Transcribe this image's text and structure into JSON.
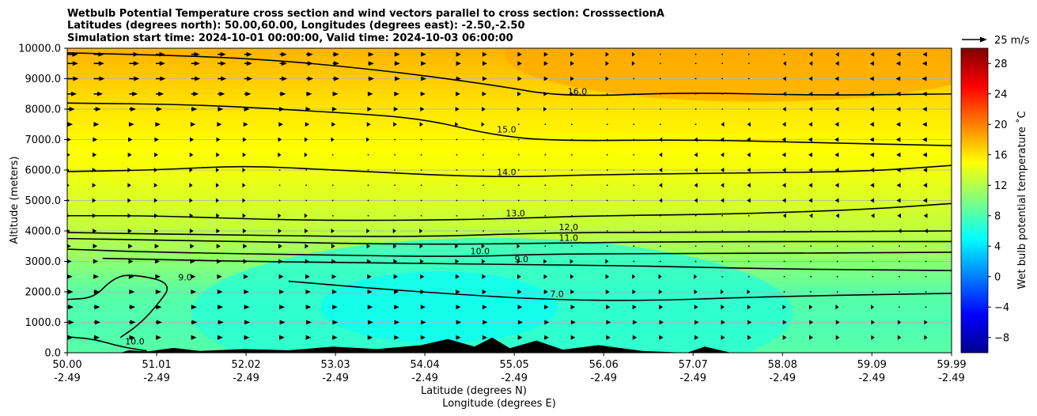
{
  "chart_data": {
    "type": "heatmap",
    "title_lines": [
      "Wetbulb Potential Temperature cross section and wind vectors parallel to cross section: CrosssectionA",
      "Latitudes (degrees north): 50.00,60.00, Longitudes (degrees east): -2.50,-2.50",
      "Simulation start time: 2024-10-01 00:00:00, Valid time: 2024-10-03 06:00:00"
    ],
    "xlabel": "Latitude (degrees N)",
    "xlabel2": "Longitude (degrees E)",
    "ylabel": "Altitude (meters)",
    "xlim": [
      50.0,
      59.99
    ],
    "ylim": [
      0,
      10000
    ],
    "x_ticks": [
      {
        "lat": "50.00",
        "lon": "-2.49",
        "value": 50.0
      },
      {
        "lat": "51.01",
        "lon": "-2.49",
        "value": 51.01
      },
      {
        "lat": "52.02",
        "lon": "-2.49",
        "value": 52.02
      },
      {
        "lat": "53.03",
        "lon": "-2.49",
        "value": 53.03
      },
      {
        "lat": "54.04",
        "lon": "-2.49",
        "value": 54.04
      },
      {
        "lat": "55.05",
        "lon": "-2.49",
        "value": 55.05
      },
      {
        "lat": "56.06",
        "lon": "-2.49",
        "value": 56.06
      },
      {
        "lat": "57.07",
        "lon": "-2.49",
        "value": 57.07
      },
      {
        "lat": "58.08",
        "lon": "-2.49",
        "value": 58.08
      },
      {
        "lat": "59.09",
        "lon": "-2.49",
        "value": 59.09
      },
      {
        "lat": "59.99",
        "lon": "-2.49",
        "value": 59.99
      }
    ],
    "y_ticks": [
      "0.0",
      "1000.0",
      "2000.0",
      "3000.0",
      "4000.0",
      "5000.0",
      "6000.0",
      "7000.0",
      "8000.0",
      "9000.0",
      "10000.0"
    ],
    "grid": true,
    "colorbar": {
      "label": "Wet bulb potential temperature $^\\circ$C",
      "label_text": "Wet bulb potential temperature ˚C",
      "range": [
        -10,
        30
      ],
      "ticks": [
        "28",
        "24",
        "20",
        "16",
        "12",
        "8",
        "4",
        "0",
        "−4",
        "−8"
      ],
      "tick_values": [
        28,
        24,
        20,
        16,
        12,
        8,
        4,
        0,
        -4,
        -8
      ],
      "colormap": "jet"
    },
    "quiver_key": {
      "label": "25 m/s",
      "speed": 25
    },
    "background_levels": [
      {
        "alt": 0,
        "value": 8.5
      },
      {
        "alt": 1000,
        "value": 8.0
      },
      {
        "alt": 2000,
        "value": 8.5
      },
      {
        "alt": 3000,
        "value": 10.5
      },
      {
        "alt": 4000,
        "value": 12.5
      },
      {
        "alt": 5000,
        "value": 13.5
      },
      {
        "alt": 6000,
        "value": 14.5
      },
      {
        "alt": 7000,
        "value": 15.2
      },
      {
        "alt": 8000,
        "value": 16.0
      },
      {
        "alt": 9000,
        "value": 17.0
      },
      {
        "alt": 10000,
        "value": 18.0
      }
    ],
    "contours": [
      {
        "level": 16.0,
        "label": "16.0",
        "points": [
          [
            50.0,
            9850
          ],
          [
            52.0,
            9700
          ],
          [
            53.5,
            9300
          ],
          [
            54.8,
            8800
          ],
          [
            55.6,
            8400
          ],
          [
            57.0,
            8550
          ],
          [
            58.5,
            8450
          ],
          [
            59.99,
            8500
          ]
        ]
      },
      {
        "level": 15.0,
        "label": "15.0",
        "points": [
          [
            50.0,
            8200
          ],
          [
            51.5,
            8150
          ],
          [
            53.0,
            7900
          ],
          [
            54.0,
            7700
          ],
          [
            54.8,
            7150
          ],
          [
            55.5,
            6950
          ],
          [
            57.0,
            7000
          ],
          [
            58.5,
            6900
          ],
          [
            59.99,
            6800
          ]
        ]
      },
      {
        "level": 14.0,
        "label": "14.0",
        "points": [
          [
            50.0,
            5950
          ],
          [
            51.0,
            6000
          ],
          [
            52.0,
            6150
          ],
          [
            53.0,
            6000
          ],
          [
            54.8,
            5750
          ],
          [
            56.0,
            5850
          ],
          [
            57.5,
            5900
          ],
          [
            59.0,
            5950
          ],
          [
            59.99,
            6150
          ]
        ]
      },
      {
        "level": 13.0,
        "label": "13.0",
        "points": [
          [
            50.0,
            4500
          ],
          [
            51.0,
            4500
          ],
          [
            52.5,
            4350
          ],
          [
            54.0,
            4350
          ],
          [
            54.9,
            4400
          ],
          [
            56.0,
            4500
          ],
          [
            57.5,
            4550
          ],
          [
            59.0,
            4700
          ],
          [
            59.99,
            4900
          ]
        ]
      },
      {
        "level": 12.0,
        "label": "12.0",
        "points": [
          [
            50.0,
            3950
          ],
          [
            52.0,
            3850
          ],
          [
            54.0,
            3800
          ],
          [
            55.5,
            3950
          ],
          [
            57.0,
            3950
          ],
          [
            59.99,
            4000
          ]
        ]
      },
      {
        "level": 11.0,
        "label": "11.0",
        "points": [
          [
            50.0,
            3750
          ],
          [
            52.0,
            3650
          ],
          [
            54.0,
            3550
          ],
          [
            55.5,
            3600
          ],
          [
            57.0,
            3650
          ],
          [
            59.99,
            3650
          ]
        ]
      },
      {
        "level": 10.0,
        "label": "10.0",
        "points": [
          [
            50.0,
            3400
          ],
          [
            51.0,
            3300
          ],
          [
            53.0,
            3200
          ],
          [
            54.5,
            3150
          ],
          [
            55.5,
            3250
          ],
          [
            57.0,
            3250
          ],
          [
            59.99,
            3300
          ]
        ]
      },
      {
        "level": 9.0,
        "label": "9.0",
        "points": [
          [
            50.4,
            3100
          ],
          [
            52.0,
            3000
          ],
          [
            53.5,
            2950
          ],
          [
            55.0,
            2900
          ],
          [
            56.5,
            2850
          ],
          [
            58.0,
            2750
          ],
          [
            59.99,
            2700
          ]
        ]
      },
      {
        "level": 7.0,
        "label": "7.0",
        "points": [
          [
            52.5,
            2350
          ],
          [
            53.5,
            2100
          ],
          [
            54.5,
            1900
          ],
          [
            55.4,
            1750
          ],
          [
            56.5,
            1700
          ],
          [
            58.0,
            1850
          ],
          [
            59.99,
            1950
          ]
        ]
      },
      {
        "level": 10.0,
        "label": "10.0",
        "points": [
          [
            50.0,
            520
          ],
          [
            50.3,
            450
          ],
          [
            50.6,
            200
          ],
          [
            50.9,
            60
          ]
        ]
      },
      {
        "level": 9.0,
        "label": "9.0",
        "points": [
          [
            50.0,
            1750
          ],
          [
            50.3,
            1800
          ],
          [
            50.5,
            2400
          ],
          [
            50.7,
            2600
          ],
          [
            51.2,
            2300
          ],
          [
            51.0,
            1500
          ],
          [
            50.8,
            900
          ],
          [
            50.6,
            500
          ]
        ]
      }
    ],
    "wind_rows_alt": [
      9800,
      9500,
      9000,
      8500,
      8000,
      7500,
      7000,
      6500,
      6000,
      5500,
      5000,
      4500,
      4000,
      3500,
      3000,
      2500,
      2000,
      1500,
      1000,
      500
    ],
    "wind_columns_lat": [
      50.0,
      50.3,
      50.7,
      51.0,
      51.4,
      51.7,
      52.0,
      52.4,
      52.7,
      53.0,
      53.4,
      53.7,
      54.0,
      54.4,
      54.7,
      55.1,
      55.4,
      55.7,
      56.1,
      56.4,
      56.7,
      57.1,
      57.4,
      57.7,
      58.1,
      58.4,
      58.7,
      59.1,
      59.4,
      59.7
    ],
    "wind_u_profile": [
      {
        "alt": 9800,
        "u_south": 14,
        "u_north": -5
      },
      {
        "alt": 9000,
        "u_south": 15,
        "u_north": -6
      },
      {
        "alt": 8000,
        "u_south": 10,
        "u_north": -5
      },
      {
        "alt": 7000,
        "u_south": 5,
        "u_north": -5
      },
      {
        "alt": 6000,
        "u_south": 3,
        "u_north": -4
      },
      {
        "alt": 5000,
        "u_south": 3,
        "u_north": -4
      },
      {
        "alt": 4000,
        "u_south": 4,
        "u_north": -2
      },
      {
        "alt": 3000,
        "u_south": 6,
        "u_north": -1
      },
      {
        "alt": 2000,
        "u_south": 8,
        "u_north": 0
      },
      {
        "alt": 1000,
        "u_south": 9,
        "u_north": 2
      },
      {
        "alt": 500,
        "u_south": 8,
        "u_north": 2
      }
    ],
    "terrain": [
      [
        50.6,
        0
      ],
      [
        50.7,
        80
      ],
      [
        50.9,
        40
      ],
      [
        51.2,
        160
      ],
      [
        51.5,
        60
      ],
      [
        52.0,
        120
      ],
      [
        52.5,
        80
      ],
      [
        53.0,
        200
      ],
      [
        53.5,
        120
      ],
      [
        54.0,
        250
      ],
      [
        54.3,
        450
      ],
      [
        54.6,
        200
      ],
      [
        54.8,
        500
      ],
      [
        55.0,
        150
      ],
      [
        55.3,
        400
      ],
      [
        55.6,
        100
      ],
      [
        56.0,
        250
      ],
      [
        56.5,
        60
      ],
      [
        57.0,
        0
      ],
      [
        57.2,
        200
      ],
      [
        57.5,
        0
      ],
      [
        58.0,
        0
      ]
    ]
  }
}
